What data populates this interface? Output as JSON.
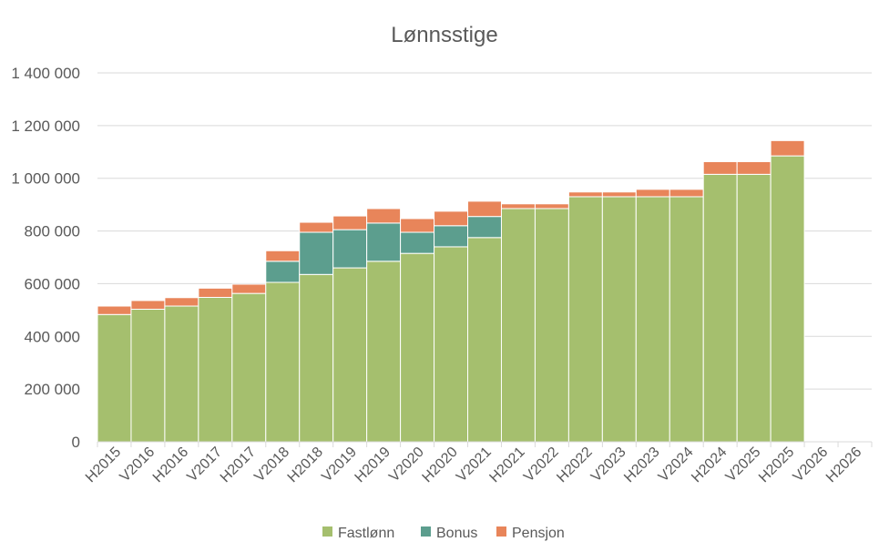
{
  "chart_data": {
    "type": "bar",
    "stacked": true,
    "title": "Lønnsstige",
    "xlabel": "",
    "ylabel": "",
    "ylim": [
      0,
      1400000
    ],
    "yticks": [
      0,
      200000,
      400000,
      600000,
      800000,
      1000000,
      1200000,
      1400000
    ],
    "ytick_labels": [
      "0",
      "200 000",
      "400 000",
      "600 000",
      "800 000",
      "1 000 000",
      "1 200 000",
      "1 400 000"
    ],
    "grid": true,
    "legend": "bottom",
    "categories": [
      "H2015",
      "V2016",
      "H2016",
      "V2017",
      "H2017",
      "V2018",
      "H2018",
      "V2019",
      "H2019",
      "V2020",
      "H2020",
      "V2021",
      "H2021",
      "V2022",
      "H2022",
      "V2023",
      "H2023",
      "V2024",
      "H2024",
      "V2025",
      "H2025",
      "V2026",
      "H2026"
    ],
    "series": [
      {
        "name": "Fastlønn",
        "color": "#a5bf6e",
        "values": [
          483000,
          503000,
          515000,
          548000,
          563000,
          605000,
          635000,
          660000,
          685000,
          715000,
          740000,
          775000,
          885000,
          885000,
          930000,
          930000,
          930000,
          930000,
          1015000,
          1015000,
          1085000,
          0,
          0
        ]
      },
      {
        "name": "Bonus",
        "color": "#5c9e8e",
        "values": [
          0,
          0,
          0,
          0,
          0,
          80000,
          160000,
          145000,
          145000,
          80000,
          80000,
          80000,
          0,
          0,
          0,
          0,
          0,
          0,
          0,
          0,
          0,
          0,
          0
        ]
      },
      {
        "name": "Pensjon",
        "color": "#e8855a",
        "values": [
          32000,
          33000,
          32000,
          35000,
          35000,
          40000,
          38000,
          52000,
          55000,
          52000,
          55000,
          58000,
          18000,
          18000,
          18000,
          18000,
          28000,
          28000,
          48000,
          48000,
          58000,
          0,
          0
        ]
      }
    ]
  }
}
